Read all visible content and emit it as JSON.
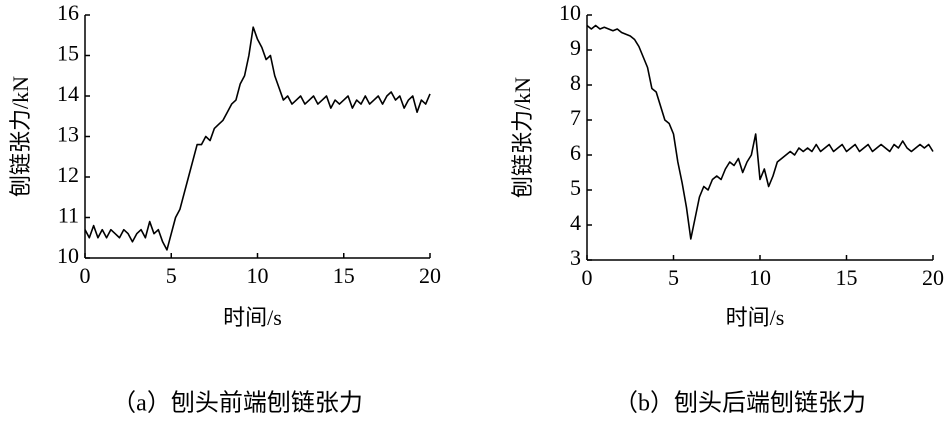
{
  "chart_data": [
    {
      "type": "line",
      "caption": "（a）刨头前端刨链张力",
      "x_label": "时间/s",
      "y_label": "刨链张力/kN",
      "xlim": [
        0,
        20
      ],
      "xticks": [
        0,
        5,
        10,
        15,
        20
      ],
      "ylim": [
        10,
        16
      ],
      "yticks": [
        10,
        11,
        12,
        13,
        14,
        15,
        16
      ],
      "x": [
        0,
        0.25,
        0.5,
        0.75,
        1,
        1.25,
        1.5,
        1.75,
        2,
        2.25,
        2.5,
        2.75,
        3,
        3.25,
        3.5,
        3.75,
        4,
        4.25,
        4.5,
        4.75,
        5,
        5.25,
        5.5,
        5.75,
        6,
        6.25,
        6.5,
        6.75,
        7,
        7.25,
        7.5,
        7.75,
        8,
        8.25,
        8.5,
        8.75,
        9,
        9.25,
        9.5,
        9.75,
        10,
        10.25,
        10.5,
        10.75,
        11,
        11.25,
        11.5,
        11.75,
        12,
        12.25,
        12.5,
        12.75,
        13,
        13.25,
        13.5,
        13.75,
        14,
        14.25,
        14.5,
        14.75,
        15,
        15.25,
        15.5,
        15.75,
        16,
        16.25,
        16.5,
        16.75,
        17,
        17.25,
        17.5,
        17.75,
        18,
        18.25,
        18.5,
        18.75,
        19,
        19.25,
        19.5,
        19.75,
        20
      ],
      "series": [
        {
          "color": "#000000",
          "values": [
            10.7,
            10.5,
            10.8,
            10.5,
            10.7,
            10.5,
            10.7,
            10.6,
            10.5,
            10.7,
            10.6,
            10.4,
            10.6,
            10.7,
            10.5,
            10.9,
            10.6,
            10.7,
            10.4,
            10.2,
            10.6,
            11.0,
            11.2,
            11.6,
            12.0,
            12.4,
            12.8,
            12.8,
            13.0,
            12.9,
            13.2,
            13.3,
            13.4,
            13.6,
            13.8,
            13.9,
            14.3,
            14.5,
            15.0,
            15.7,
            15.4,
            15.2,
            14.9,
            15.0,
            14.5,
            14.2,
            13.9,
            14.0,
            13.8,
            13.9,
            14.0,
            13.8,
            13.9,
            14.0,
            13.8,
            13.9,
            14.0,
            13.7,
            13.9,
            13.8,
            13.9,
            14.0,
            13.7,
            13.9,
            13.8,
            14.0,
            13.8,
            13.9,
            14.0,
            13.8,
            14.0,
            14.1,
            13.9,
            14.0,
            13.7,
            13.9,
            14.0,
            13.6,
            13.9,
            13.8,
            14.05
          ]
        }
      ]
    },
    {
      "type": "line",
      "caption": "（b）刨头后端刨链张力",
      "x_label": "时间/s",
      "y_label": "刨链张力/kN",
      "xlim": [
        0,
        20
      ],
      "xticks": [
        0,
        5,
        10,
        15,
        20
      ],
      "ylim": [
        3,
        10
      ],
      "yticks": [
        3,
        4,
        5,
        6,
        7,
        8,
        9,
        10
      ],
      "x": [
        0,
        0.25,
        0.5,
        0.75,
        1,
        1.25,
        1.5,
        1.75,
        2,
        2.25,
        2.5,
        2.75,
        3,
        3.25,
        3.5,
        3.75,
        4,
        4.25,
        4.5,
        4.75,
        5,
        5.25,
        5.5,
        5.75,
        6,
        6.25,
        6.5,
        6.75,
        7,
        7.25,
        7.5,
        7.75,
        8,
        8.25,
        8.5,
        8.75,
        9,
        9.25,
        9.5,
        9.75,
        10,
        10.25,
        10.5,
        10.75,
        11,
        11.25,
        11.5,
        11.75,
        12,
        12.25,
        12.5,
        12.75,
        13,
        13.25,
        13.5,
        13.75,
        14,
        14.25,
        14.5,
        14.75,
        15,
        15.25,
        15.5,
        15.75,
        16,
        16.25,
        16.5,
        16.75,
        17,
        17.25,
        17.5,
        17.75,
        18,
        18.25,
        18.5,
        18.75,
        19,
        19.25,
        19.5,
        19.75,
        20
      ],
      "series": [
        {
          "color": "#000000",
          "values": [
            9.7,
            9.6,
            9.7,
            9.6,
            9.65,
            9.6,
            9.55,
            9.6,
            9.5,
            9.45,
            9.4,
            9.3,
            9.1,
            8.8,
            8.5,
            7.9,
            7.8,
            7.4,
            7.0,
            6.9,
            6.6,
            5.8,
            5.2,
            4.5,
            3.6,
            4.2,
            4.8,
            5.1,
            5.0,
            5.3,
            5.4,
            5.3,
            5.6,
            5.8,
            5.7,
            5.9,
            5.5,
            5.8,
            6.0,
            6.6,
            5.3,
            5.6,
            5.1,
            5.4,
            5.8,
            5.9,
            6.0,
            6.1,
            6.0,
            6.2,
            6.1,
            6.2,
            6.1,
            6.3,
            6.1,
            6.2,
            6.3,
            6.1,
            6.2,
            6.3,
            6.1,
            6.2,
            6.3,
            6.1,
            6.2,
            6.3,
            6.1,
            6.2,
            6.3,
            6.2,
            6.1,
            6.3,
            6.2,
            6.4,
            6.2,
            6.1,
            6.2,
            6.3,
            6.2,
            6.3,
            6.1
          ]
        }
      ]
    }
  ]
}
